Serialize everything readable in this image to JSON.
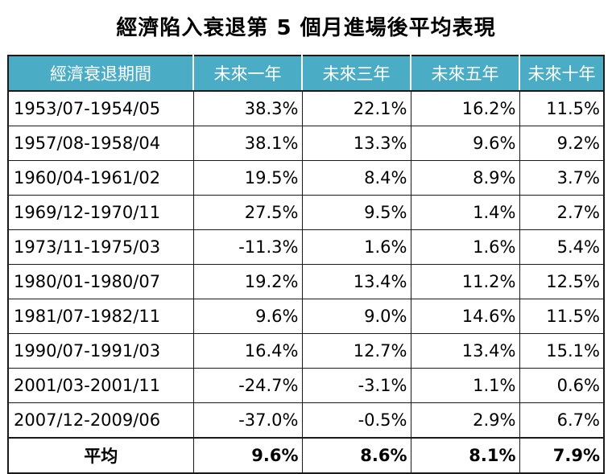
{
  "title": "經濟陷入衰退第 5 個月進場後平均表現",
  "colors": {
    "header_bg": "#4bacc6",
    "header_text": "#ffffff",
    "border": "#1a1a1a"
  },
  "chart_data": {
    "type": "table",
    "title": "經濟陷入衰退第 5 個月進場後平均表現",
    "columns": [
      "經濟衰退期間",
      "未來一年",
      "未來三年",
      "未來五年",
      "未來十年"
    ],
    "rows": [
      [
        "1953/07-1954/05",
        "38.3%",
        "22.1%",
        "16.2%",
        "11.5%"
      ],
      [
        "1957/08-1958/04",
        "38.1%",
        "13.3%",
        "9.6%",
        "9.2%"
      ],
      [
        "1960/04-1961/02",
        "19.5%",
        "8.4%",
        "8.9%",
        "3.7%"
      ],
      [
        "1969/12-1970/11",
        "27.5%",
        "9.5%",
        "1.4%",
        "2.7%"
      ],
      [
        "1973/11-1975/03",
        "-11.3%",
        "1.6%",
        "1.6%",
        "5.4%"
      ],
      [
        "1980/01-1980/07",
        "19.2%",
        "13.4%",
        "11.2%",
        "12.5%"
      ],
      [
        "1981/07-1982/11",
        "9.6%",
        "9.0%",
        "14.6%",
        "11.5%"
      ],
      [
        "1990/07-1991/03",
        "16.4%",
        "12.7%",
        "13.4%",
        "15.1%"
      ],
      [
        "2001/03-2001/11",
        "-24.7%",
        "-3.1%",
        "1.1%",
        "0.6%"
      ],
      [
        "2007/12-2009/06",
        "-37.0%",
        "-0.5%",
        "2.9%",
        "6.7%"
      ]
    ],
    "average": [
      "平均",
      "9.6%",
      "8.6%",
      "8.1%",
      "7.9%"
    ]
  }
}
